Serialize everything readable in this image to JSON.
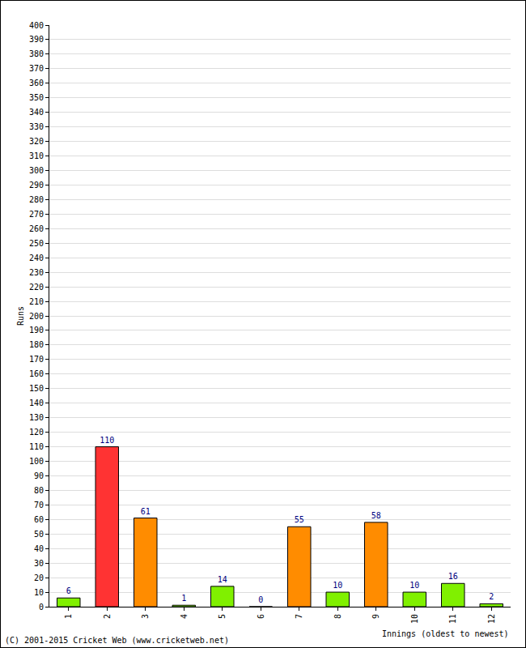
{
  "chart_data": {
    "type": "bar",
    "categories": [
      "1",
      "2",
      "3",
      "4",
      "5",
      "6",
      "7",
      "8",
      "9",
      "10",
      "11",
      "12"
    ],
    "values": [
      6,
      110,
      61,
      1,
      14,
      0,
      55,
      10,
      58,
      10,
      16,
      2
    ],
    "colors": [
      "#80f000",
      "#ff3333",
      "#ff8c00",
      "#80f000",
      "#80f000",
      "#80f000",
      "#ff8c00",
      "#80f000",
      "#ff8c00",
      "#80f000",
      "#80f000",
      "#80f000"
    ],
    "x_label": "Innings (oldest to newest)",
    "y_label": "Runs",
    "annotations": [
      "(C) 2001-2015 Cricket Web (www.cricketweb.net)"
    ],
    "ylim": [
      0,
      400
    ],
    "yticks": [
      0,
      10,
      20,
      30,
      40,
      50,
      60,
      70,
      80,
      90,
      100,
      110,
      120,
      130,
      140,
      150,
      160,
      170,
      180,
      190,
      200,
      210,
      220,
      230,
      240,
      250,
      260,
      270,
      280,
      290,
      300,
      310,
      320,
      330,
      340,
      350,
      360,
      370,
      380,
      390,
      400
    ],
    "grid": true,
    "data_labels": true
  }
}
